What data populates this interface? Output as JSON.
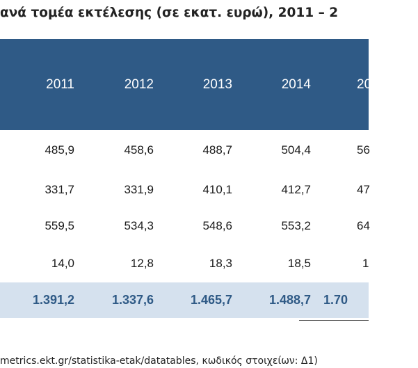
{
  "title": "ανά τομέα εκτέλεσης (σε εκατ. ευρώ), 2011 – 2",
  "years": [
    "2011",
    "2012",
    "2013",
    "2014",
    "20"
  ],
  "rows": [
    [
      "485,9",
      "458,6",
      "488,7",
      "504,4",
      "56"
    ],
    [
      "331,7",
      "331,9",
      "410,1",
      "412,7",
      "47"
    ],
    [
      "559,5",
      "534,3",
      "548,6",
      "553,2",
      "64"
    ],
    [
      "14,0",
      "12,8",
      "18,3",
      "18,5",
      "1"
    ]
  ],
  "totals": [
    "1.391,2",
    "1.337,6",
    "1.465,7",
    "1.488,7",
    "1.70"
  ],
  "source": "metrics.ekt.gr/statistika-etak/datatables, κωδικός στοιχείων: Δ1)",
  "colors": {
    "header_bg": "#2f5a86",
    "total_bg": "#d5e1ee",
    "total_text": "#2f5a86"
  }
}
